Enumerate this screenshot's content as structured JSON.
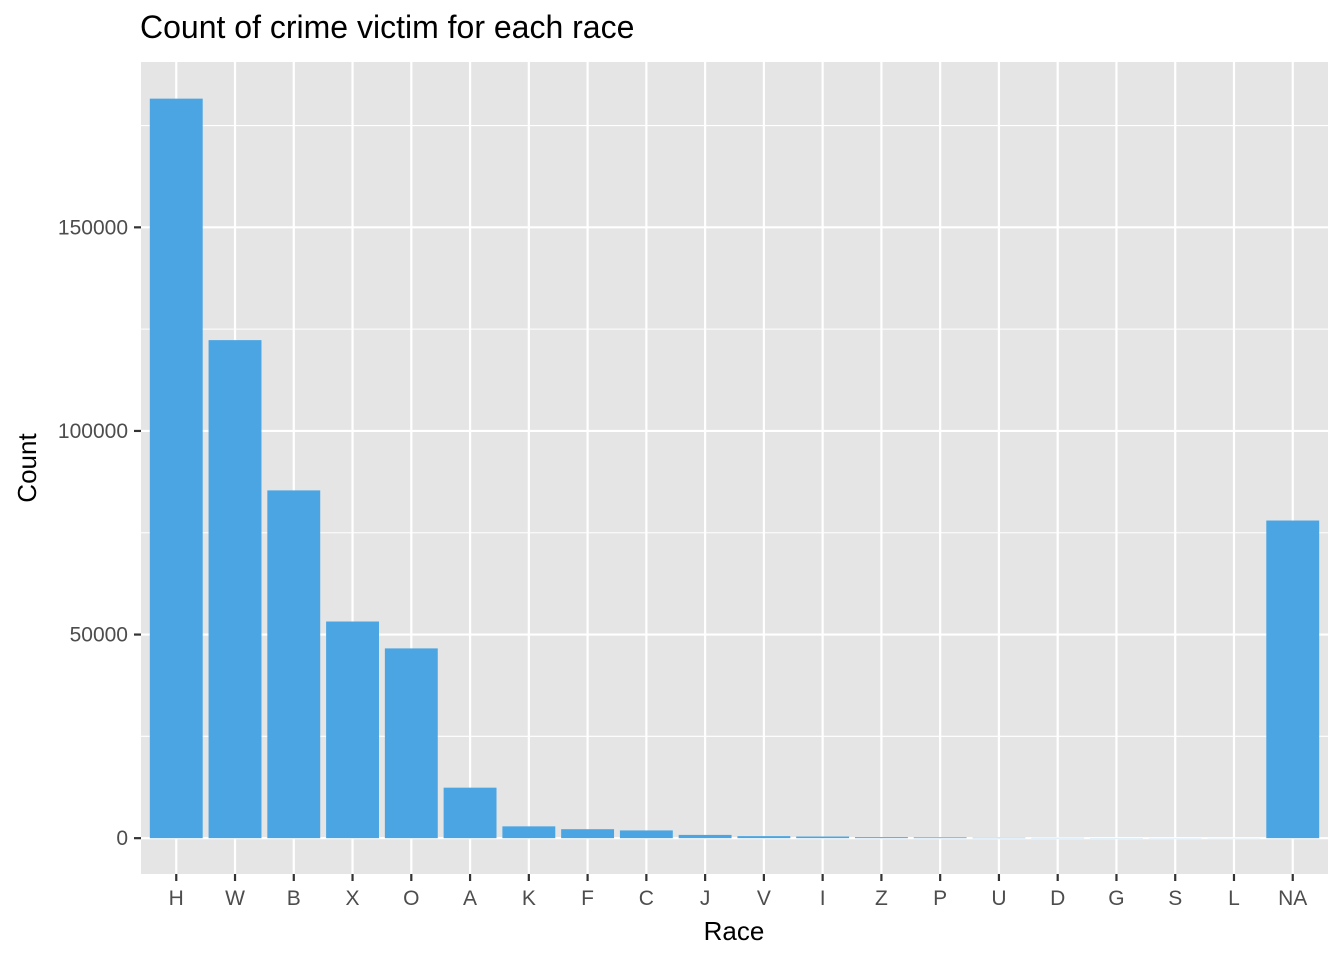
{
  "chart_data": {
    "type": "bar",
    "title": "Count of crime victim for each race",
    "xlabel": "Race",
    "ylabel": "Count",
    "categories": [
      "H",
      "W",
      "B",
      "X",
      "O",
      "A",
      "K",
      "F",
      "C",
      "J",
      "V",
      "I",
      "Z",
      "P",
      "U",
      "D",
      "G",
      "S",
      "L",
      "NA"
    ],
    "values": [
      181600,
      122300,
      85400,
      53200,
      46600,
      12400,
      2900,
      2200,
      1900,
      800,
      500,
      400,
      250,
      200,
      100,
      60,
      40,
      30,
      20,
      78000
    ],
    "ylim": [
      -8800,
      190600
    ],
    "yticks": [
      0,
      50000,
      100000,
      150000
    ],
    "ytick_labels": [
      "0",
      "50000",
      "100000",
      "150000"
    ],
    "grid": true,
    "bar_color": "#4AA5E2",
    "panel_color": "#E5E5E5",
    "grid_color": "#FFFFFF",
    "legend": "none"
  }
}
